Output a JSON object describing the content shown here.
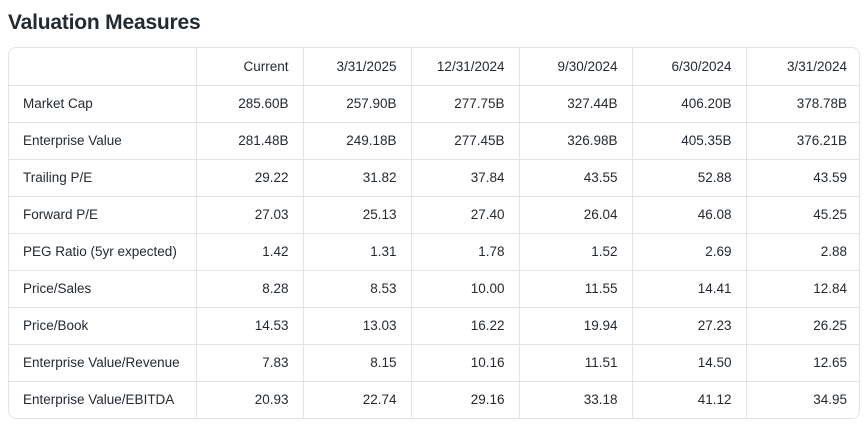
{
  "page_title": "Valuation Measures",
  "colors": {
    "text": "#232a31",
    "border": "#e0e4e9",
    "background": "#ffffff"
  },
  "table": {
    "columns": [
      "",
      "Current",
      "3/31/2025",
      "12/31/2024",
      "9/30/2024",
      "6/30/2024",
      "3/31/2024"
    ],
    "rows": [
      {
        "label": "Market Cap",
        "values": [
          "285.60B",
          "257.90B",
          "277.75B",
          "327.44B",
          "406.20B",
          "378.78B"
        ]
      },
      {
        "label": "Enterprise Value",
        "values": [
          "281.48B",
          "249.18B",
          "277.45B",
          "326.98B",
          "405.35B",
          "376.21B"
        ]
      },
      {
        "label": "Trailing P/E",
        "values": [
          "29.22",
          "31.82",
          "37.84",
          "43.55",
          "52.88",
          "43.59"
        ]
      },
      {
        "label": "Forward P/E",
        "values": [
          "27.03",
          "25.13",
          "27.40",
          "26.04",
          "46.08",
          "45.25"
        ]
      },
      {
        "label": "PEG Ratio (5yr expected)",
        "values": [
          "1.42",
          "1.31",
          "1.78",
          "1.52",
          "2.69",
          "2.88"
        ]
      },
      {
        "label": "Price/Sales",
        "values": [
          "8.28",
          "8.53",
          "10.00",
          "11.55",
          "14.41",
          "12.84"
        ]
      },
      {
        "label": "Price/Book",
        "values": [
          "14.53",
          "13.03",
          "16.22",
          "19.94",
          "27.23",
          "26.25"
        ]
      },
      {
        "label": "Enterprise Value/Revenue",
        "values": [
          "7.83",
          "8.15",
          "10.16",
          "11.51",
          "14.50",
          "12.65"
        ]
      },
      {
        "label": "Enterprise Value/EBITDA",
        "values": [
          "20.93",
          "22.74",
          "29.16",
          "33.18",
          "41.12",
          "34.95"
        ]
      }
    ]
  }
}
